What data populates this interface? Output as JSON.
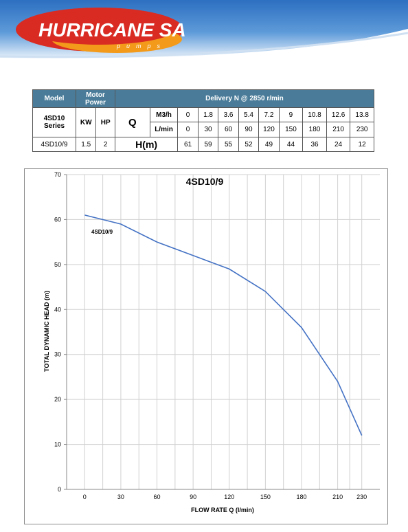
{
  "brand": {
    "name": "HURRICANE SA",
    "sub": "pumps",
    "colors": {
      "oval_red": "#d92b22",
      "oval_orange": "#f39a1b",
      "sky": "#3f85cf"
    }
  },
  "table": {
    "headers": {
      "model": "Model",
      "motor_power": "Motor Power",
      "delivery": "Delivery N @ 2850 r/min"
    },
    "series_name": "4SD10 Series",
    "kw_label": "KW",
    "hp_label": "HP",
    "q_label": "Q",
    "m3h_label": "M3/h",
    "lmin_label": "L/min",
    "h_label": "H(m)",
    "m3h": [
      "0",
      "1.8",
      "3.6",
      "5.4",
      "7.2",
      "9",
      "10.8",
      "12.6",
      "13.8"
    ],
    "lmin": [
      "0",
      "30",
      "60",
      "90",
      "120",
      "150",
      "180",
      "210",
      "230"
    ],
    "row": {
      "model": "4SD10/9",
      "kw": "1.5",
      "hp": "2"
    },
    "h": [
      "61",
      "59",
      "55",
      "52",
      "49",
      "44",
      "36",
      "24",
      "12"
    ]
  },
  "chart_data": {
    "type": "line",
    "title": "4SD10/9",
    "xlabel": "FLOW RATE Q (l/min)",
    "ylabel": "TOTAL DYNAMIC HEAD (m)",
    "x": [
      0,
      30,
      60,
      90,
      120,
      150,
      180,
      210,
      230
    ],
    "series": [
      {
        "name": "4SD10/9",
        "values": [
          61,
          59,
          55,
          52,
          49,
          44,
          36,
          24,
          12
        ],
        "color": "#4472c4"
      }
    ],
    "xticks": [
      0,
      30,
      60,
      90,
      120,
      150,
      180,
      210,
      230
    ],
    "yticks": [
      0,
      10,
      20,
      30,
      40,
      50,
      60,
      70
    ],
    "xlim": [
      -15,
      245
    ],
    "ylim": [
      0,
      70
    ],
    "grid": true,
    "legend": "none"
  }
}
